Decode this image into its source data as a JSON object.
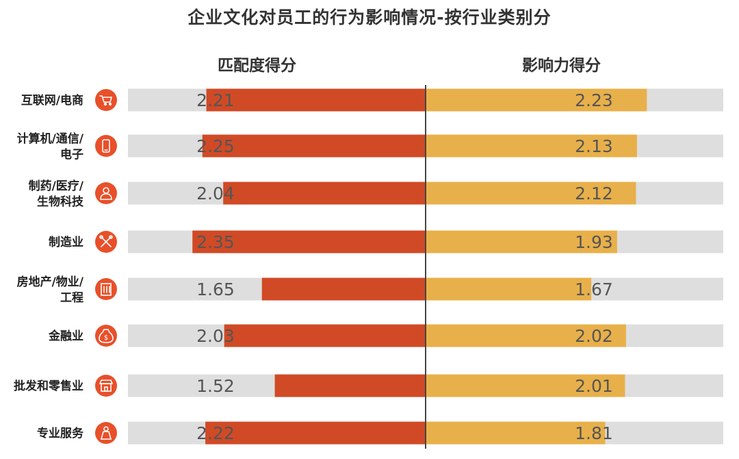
{
  "title": "企业文化对员工的行为影响情况-按行业类别分",
  "chart_data": {
    "type": "bar",
    "orientation": "horizontal-diverging",
    "left_series": {
      "name": "匹配度得分",
      "color": "#D04A26"
    },
    "right_series": {
      "name": "影响力得分",
      "color": "#E8B04A"
    },
    "background_track_color": "#DEDEDE",
    "icon_color": "#E8502A",
    "xlim": [
      0,
      3
    ],
    "categories": [
      {
        "lines": [
          "互联网/电商"
        ],
        "icon": "cart-icon",
        "left": 2.21,
        "right": 2.23,
        "left_label": "2.21",
        "right_label": "2.23"
      },
      {
        "lines": [
          "计算机/通信/",
          "电子"
        ],
        "icon": "phone-icon",
        "left": 2.25,
        "right": 2.13,
        "left_label": "2.25",
        "right_label": "2.13"
      },
      {
        "lines": [
          "制药/医疗/",
          "生物科技"
        ],
        "icon": "doctor-icon",
        "left": 2.04,
        "right": 2.12,
        "left_label": "2.04",
        "right_label": "2.12"
      },
      {
        "lines": [
          "制造业"
        ],
        "icon": "tools-icon",
        "left": 2.35,
        "right": 1.93,
        "left_label": "2.35",
        "right_label": "1.93"
      },
      {
        "lines": [
          "房地产/物业/",
          "工程"
        ],
        "icon": "building-icon",
        "left": 1.65,
        "right": 1.67,
        "left_label": "1.65",
        "right_label": "1.67"
      },
      {
        "lines": [
          "金融业"
        ],
        "icon": "money-bag-icon",
        "left": 2.03,
        "right": 2.02,
        "left_label": "2.03",
        "right_label": "2.02"
      },
      {
        "lines": [
          "批发和零售业"
        ],
        "icon": "shop-icon",
        "left": 1.52,
        "right": 2.01,
        "left_label": "1.52",
        "right_label": "2.01"
      },
      {
        "lines": [
          "专业服务"
        ],
        "icon": "person-icon",
        "left": 2.22,
        "right": 1.81,
        "left_label": "2.22",
        "right_label": "1.81"
      }
    ]
  }
}
